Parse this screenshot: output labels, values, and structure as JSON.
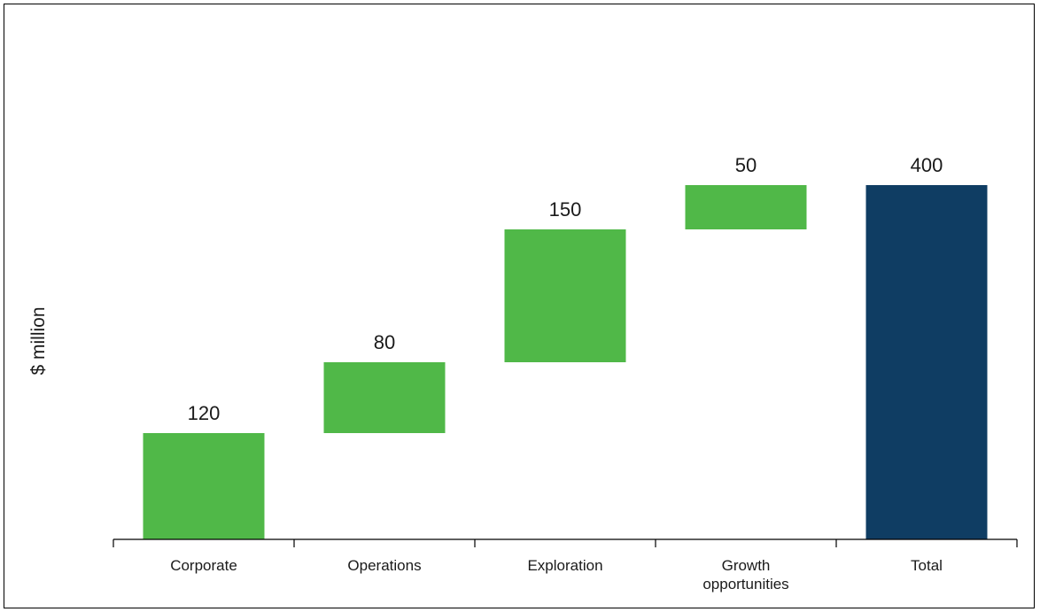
{
  "chart_data": {
    "type": "bar",
    "subtype": "waterfall",
    "title": "",
    "xlabel": "",
    "ylabel": "$ million",
    "categories": [
      [
        "Corporate"
      ],
      [
        "Operations"
      ],
      [
        "Exploration"
      ],
      [
        "Growth",
        "opportunities"
      ],
      [
        "Total"
      ]
    ],
    "values": [
      120,
      80,
      150,
      50,
      400
    ],
    "value_labels": [
      "120",
      "80",
      "150",
      "50",
      "400"
    ],
    "bar_kinds": [
      "increment",
      "increment",
      "increment",
      "increment",
      "total"
    ],
    "ylim": [
      0,
      500
    ],
    "grid": false,
    "legend": "none",
    "colors": {
      "increment": "#50b848",
      "total": "#0f3d63",
      "axis": "#000000",
      "text": "#1a1a1a"
    }
  }
}
